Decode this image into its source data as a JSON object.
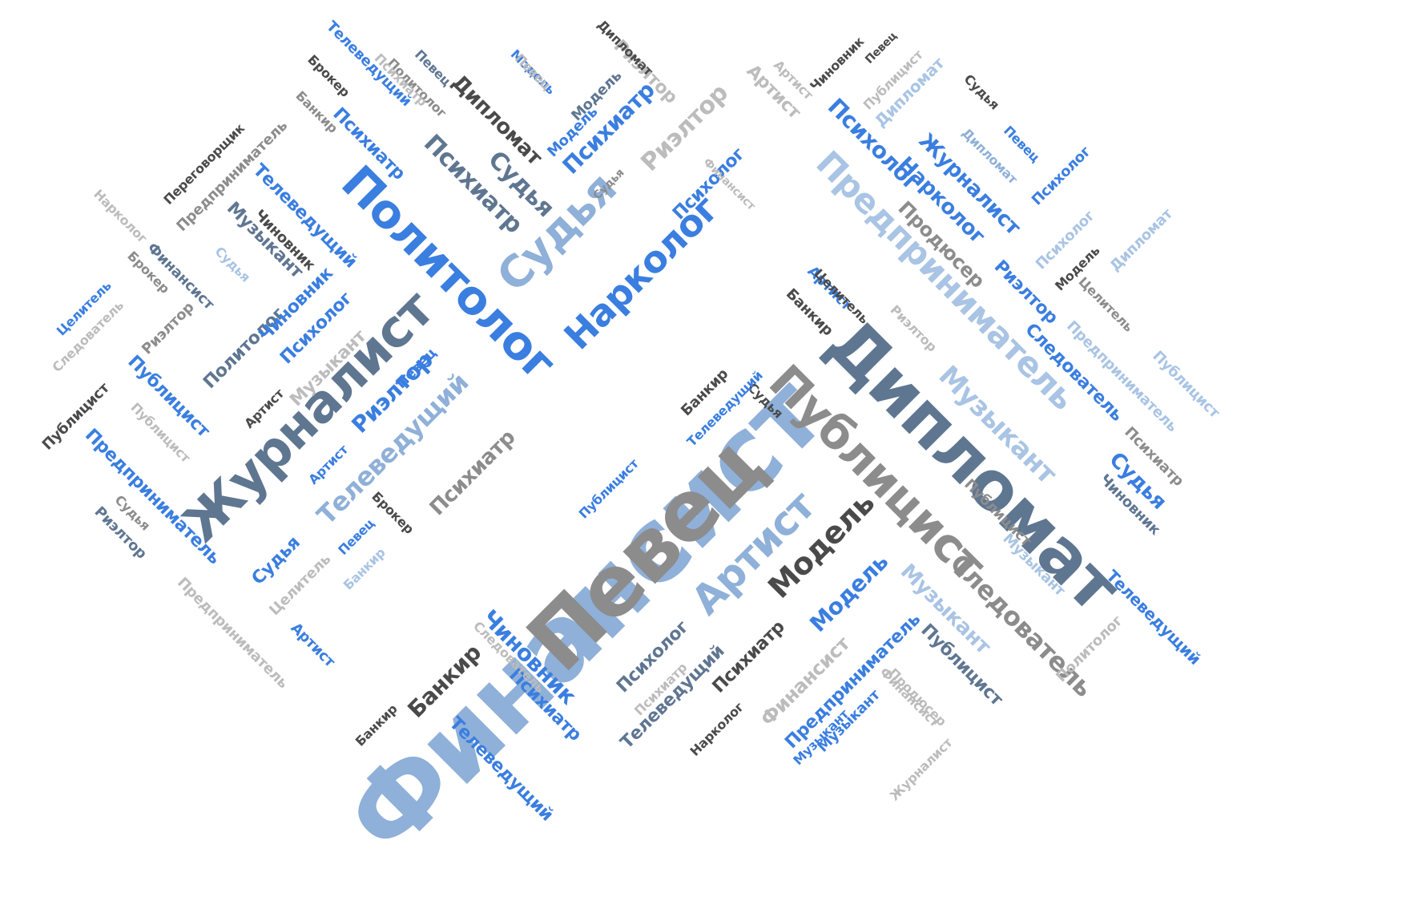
{
  "colors": {
    "blue": "#3a7ee0",
    "lightblue": "#8fb0d8",
    "paleblue": "#a9c4e4",
    "slate": "#5f7691",
    "dark": "#4a4a4a",
    "gray": "#8c8c8c",
    "lightgray": "#bcbcbc"
  },
  "words": [
    {
      "text": "Финансист",
      "color": "lightblue"
    },
    {
      "text": "Певец",
      "color": "gray"
    },
    {
      "text": "Дипломат",
      "color": "slate"
    },
    {
      "text": "Публицист",
      "color": "gray"
    },
    {
      "text": "Журналист",
      "color": "slate"
    },
    {
      "text": "Политолог",
      "color": "blue"
    },
    {
      "text": "Судья",
      "color": "lightblue"
    },
    {
      "text": "Нарколог",
      "color": "blue"
    },
    {
      "text": "Артист",
      "color": "lightblue"
    },
    {
      "text": "Модель",
      "color": "dark"
    },
    {
      "text": "Предприниматель",
      "color": "paleblue"
    },
    {
      "text": "Музыкант",
      "color": "paleblue"
    },
    {
      "text": "Следователь",
      "color": "gray"
    },
    {
      "text": "Телеведущий",
      "color": "lightblue"
    },
    {
      "text": "Психиатр",
      "color": "gray"
    },
    {
      "text": "Риэлтор",
      "color": "blue"
    },
    {
      "text": "Психиатр",
      "color": "slate"
    },
    {
      "text": "Судья",
      "color": "slate"
    },
    {
      "text": "Дипломат",
      "color": "dark"
    },
    {
      "text": "Психиатр",
      "color": "blue"
    },
    {
      "text": "Риэлтор",
      "color": "lightgray"
    },
    {
      "text": "Психолог",
      "color": "blue"
    },
    {
      "text": "Продюсер",
      "color": "gray"
    },
    {
      "text": "Журналист",
      "color": "blue"
    },
    {
      "text": "Нарколог",
      "color": "blue"
    },
    {
      "text": "Риэлтор",
      "color": "blue"
    },
    {
      "text": "Следователь",
      "color": "blue"
    },
    {
      "text": "Судья",
      "color": "blue"
    },
    {
      "text": "Телеведущий",
      "color": "blue"
    },
    {
      "text": "Музыкант",
      "color": "paleblue"
    },
    {
      "text": "Публицист",
      "color": "slate"
    },
    {
      "text": "Чиновник",
      "color": "blue"
    },
    {
      "text": "Банкир",
      "color": "dark"
    },
    {
      "text": "Психиатр",
      "color": "blue"
    },
    {
      "text": "Телеведущий",
      "color": "blue"
    },
    {
      "text": "Психолог",
      "color": "slate"
    },
    {
      "text": "Телеведущий",
      "color": "slate"
    },
    {
      "text": "Психиатр",
      "color": "dark"
    },
    {
      "text": "Финансист",
      "color": "lightgray"
    },
    {
      "text": "Предприниматель",
      "color": "blue"
    },
    {
      "text": "Музыкант",
      "color": "blue"
    },
    {
      "text": "Модель",
      "color": "blue"
    },
    {
      "text": "Психолог",
      "color": "blue"
    },
    {
      "text": "Политолог",
      "color": "slate"
    },
    {
      "text": "Музыкант",
      "color": "lightgray"
    },
    {
      "text": "Телеведущий",
      "color": "blue"
    },
    {
      "text": "Музыкант",
      "color": "slate"
    },
    {
      "text": "Чиновник",
      "color": "dark"
    },
    {
      "text": "Предприниматель",
      "color": "gray"
    },
    {
      "text": "Переговорщик",
      "color": "dark"
    },
    {
      "text": "Финансист",
      "color": "slate"
    },
    {
      "text": "Нарколог",
      "color": "lightgray"
    },
    {
      "text": "Брокер",
      "color": "gray"
    },
    {
      "text": "Целитель",
      "color": "blue"
    },
    {
      "text": "Следователь",
      "color": "lightgray"
    },
    {
      "text": "Риэлтор",
      "color": "gray"
    },
    {
      "text": "Публицист",
      "color": "blue"
    },
    {
      "text": "Публицист",
      "color": "lightgray"
    },
    {
      "text": "Публицист",
      "color": "dark"
    },
    {
      "text": "Предприниматель",
      "color": "blue"
    },
    {
      "text": "Риэлтор",
      "color": "slate"
    },
    {
      "text": "Судья",
      "color": "gray"
    },
    {
      "text": "Артист",
      "color": "dark"
    },
    {
      "text": "Артист",
      "color": "blue"
    },
    {
      "text": "Судья",
      "color": "paleblue"
    },
    {
      "text": "Судья",
      "color": "blue"
    },
    {
      "text": "Певец",
      "color": "blue"
    },
    {
      "text": "Брокер",
      "color": "dark"
    },
    {
      "text": "Целитель",
      "color": "lightgray"
    },
    {
      "text": "Артист",
      "color": "blue"
    },
    {
      "text": "Предприниматель",
      "color": "lightgray"
    },
    {
      "text": "Банкир",
      "color": "dark"
    },
    {
      "text": "Чиновник",
      "color": "blue"
    },
    {
      "text": "Психиатр",
      "color": "blue"
    },
    {
      "text": "Телеведущий",
      "color": "blue"
    },
    {
      "text": "Банкир",
      "color": "gray"
    },
    {
      "text": "Политолог",
      "color": "gray"
    },
    {
      "text": "Психиатр",
      "color": "lightgray"
    },
    {
      "text": "Брокер",
      "color": "dark"
    },
    {
      "text": "Певец",
      "color": "slate"
    },
    {
      "text": "Публицист",
      "color": "blue"
    },
    {
      "text": "Банкир",
      "color": "dark"
    },
    {
      "text": "Судья",
      "color": "dark"
    },
    {
      "text": "Артист",
      "color": "blue"
    },
    {
      "text": "Банкир",
      "color": "dark"
    },
    {
      "text": "Целитель",
      "color": "dark"
    },
    {
      "text": "Риэлтор",
      "color": "lightgray"
    },
    {
      "text": "Продюсер",
      "color": "lightgray"
    },
    {
      "text": "Нарколог",
      "color": "dark"
    },
    {
      "text": "Музыкант",
      "color": "blue"
    },
    {
      "text": "Финансист",
      "color": "lightgray"
    },
    {
      "text": "Журналист",
      "color": "lightgray"
    },
    {
      "text": "Публицист",
      "color": "gray"
    },
    {
      "text": "Политолог",
      "color": "lightgray"
    },
    {
      "text": "Музыкант",
      "color": "paleblue"
    },
    {
      "text": "Чиновник",
      "color": "slate"
    },
    {
      "text": "Психиатр",
      "color": "gray"
    },
    {
      "text": "Предприниматель",
      "color": "paleblue"
    },
    {
      "text": "Публицист",
      "color": "paleblue"
    },
    {
      "text": "Целитель",
      "color": "gray"
    },
    {
      "text": "Модель",
      "color": "dark"
    },
    {
      "text": "Дипломат",
      "color": "paleblue"
    },
    {
      "text": "Психолог",
      "color": "paleblue"
    },
    {
      "text": "Психолог",
      "color": "blue"
    },
    {
      "text": "Певец",
      "color": "blue"
    },
    {
      "text": "Дипломат",
      "color": "lightblue"
    },
    {
      "text": "Судья",
      "color": "dark"
    },
    {
      "text": "Дипломат",
      "color": "paleblue"
    },
    {
      "text": "Публицист",
      "color": "lightgray"
    },
    {
      "text": "Чиновник",
      "color": "dark"
    },
    {
      "text": "Артист",
      "color": "lightgray"
    },
    {
      "text": "Психолог",
      "color": "blue"
    },
    {
      "text": "Риэлтор",
      "color": "lightgray"
    },
    {
      "text": "Модель",
      "color": "slate"
    },
    {
      "text": "Судья",
      "color": "gray"
    },
    {
      "text": "Модель",
      "color": "blue"
    },
    {
      "text": "Модель",
      "color": "blue"
    },
    {
      "text": "Певец",
      "color": "lightgray"
    },
    {
      "text": "Дипломат",
      "color": "dark"
    },
    {
      "text": "Певец",
      "color": "blue"
    },
    {
      "text": "Следователь",
      "color": "lightgray"
    },
    {
      "text": "Психиатр",
      "color": "lightgray"
    },
    {
      "text": "Телеведущий",
      "color": "blue"
    },
    {
      "text": "Финансист",
      "color": "lightgray"
    },
    {
      "text": "Банкир",
      "color": "paleblue"
    },
    {
      "text": "Певец",
      "color": "dark"
    },
    {
      "text": "Артист",
      "color": "lightgray"
    }
  ]
}
